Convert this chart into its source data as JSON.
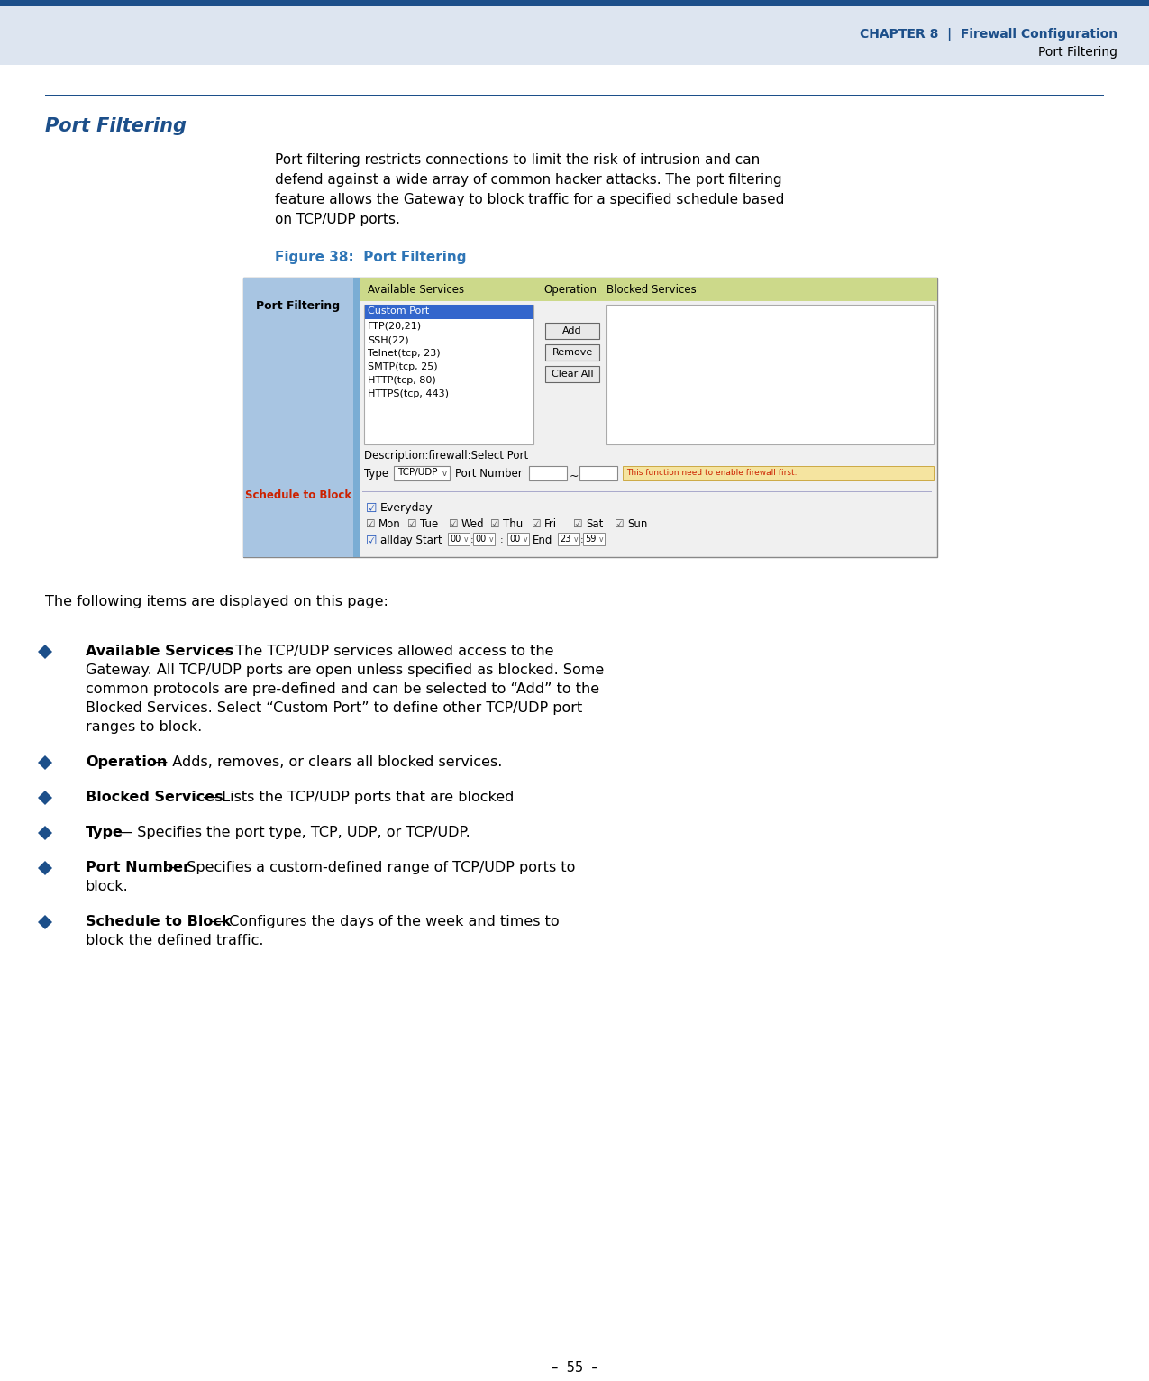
{
  "page_bg": "#ffffff",
  "header_bar_color": "#1c4f8a",
  "header_bg": "#dde5f0",
  "header_chapter_text": "C",
  "header_chapter_rest": "HAPTER",
  "header_chapter_num": " 8",
  "header_pipe": "  |  ",
  "header_section": "Firewall Configuration",
  "header_sub_text": "Port Filtering",
  "header_text_color": "#1c4f8a",
  "header_sub_color": "#000000",
  "section_line_color": "#1c4f8a",
  "section_title_small": "P",
  "section_title_rest": "ORT ",
  "section_title_small2": "F",
  "section_title_rest2": "ILTERING",
  "section_title_color": "#1c4f8a",
  "body_text_color": "#000000",
  "body_text_line1": "Port filtering restricts connections to limit the risk of intrusion and can",
  "body_text_line2": "defend against a wide array of common hacker attacks. The port filtering",
  "body_text_line3": "feature allows the Gateway to block traffic for a specified schedule based",
  "body_text_line4": "on TCP/UDP ports.",
  "figure_label": "Figure 38:  Port Filtering",
  "figure_label_color": "#2e75b6",
  "figure_left_panel_bg": "#a8c5e2",
  "figure_left_dark_bg": "#7aadd4",
  "figure_left_panel_text": "Port Filtering",
  "figure_left_panel_text_color": "#000000",
  "figure_header_bg": "#ccd98a",
  "figure_available_services_header": "Available Services",
  "figure_operation_header": "Operation",
  "figure_blocked_header": "Blocked Services",
  "figure_selected_bg": "#3366cc",
  "figure_selected_text": "Custom Port",
  "figure_selected_text_color": "#ffffff",
  "figure_list_items": [
    "FTP(20,21)",
    "SSH(22)",
    "Telnet(tcp, 23)",
    "SMTP(tcp, 25)",
    "HTTP(tcp, 80)",
    "HTTPS(tcp, 443)"
  ],
  "figure_btn_add": "Add",
  "figure_btn_remove": "Remove",
  "figure_btn_clearall": "Clear All",
  "figure_desc_text": "Description:firewall:Select Port",
  "figure_type_label": "Type",
  "figure_type_value": "TCP/UDP",
  "figure_port_label": "Port Number",
  "figure_warning_text": "This function need to enable firewall first.",
  "figure_warning_bg": "#f5e4a0",
  "figure_warning_text_color": "#cc2200",
  "figure_schedule_label": "Schedule to Block",
  "figure_schedule_color": "#cc2200",
  "figure_everyday_text": "Everyday",
  "bullet_color": "#1c4f8a",
  "bullet_items": [
    {
      "bold": "Available Services",
      "rest": " — The TCP/UDP services allowed access to the\nGateway. All TCP/UDP ports are open unless specified as blocked. Some\ncommon protocols are pre-defined and can be selected to “Add” to the\nBlocked Services. Select “Custom Port” to define other TCP/UDP port\nranges to block."
    },
    {
      "bold": "Operation",
      "rest": " — Adds, removes, or clears all blocked services."
    },
    {
      "bold": "Blocked Services",
      "rest": " — Lists the TCP/UDP ports that are blocked"
    },
    {
      "bold": "Type",
      "rest": " — Specifies the port type, TCP, UDP, or TCP/UDP."
    },
    {
      "bold": "Port Number",
      "rest": " — Specifies a custom-defined range of TCP/UDP ports to\nblock."
    },
    {
      "bold": "Schedule to Block",
      "rest": " — Configures the days of the week and times to\nblock the defined traffic."
    }
  ],
  "page_number": "55",
  "following_text": "The following items are displayed on this page:"
}
